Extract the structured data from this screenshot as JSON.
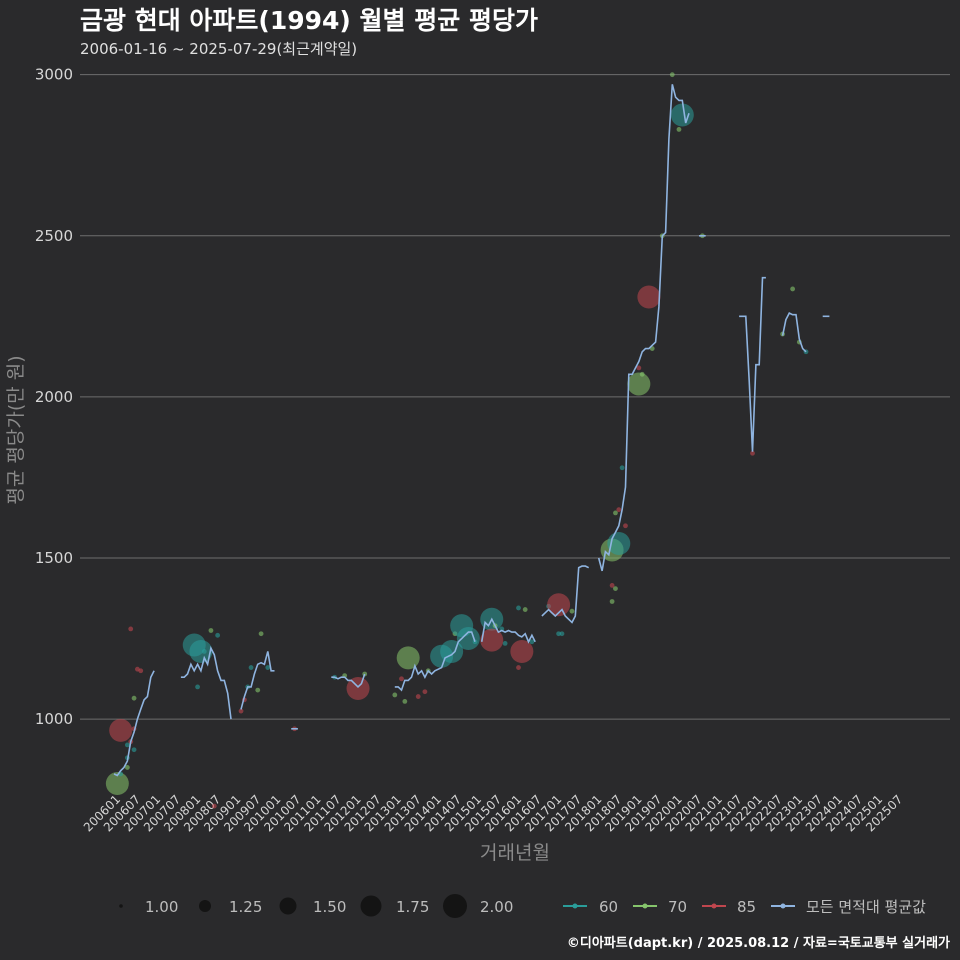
{
  "chart_data": {
    "type": "line",
    "title": "금광 현대 아파트(1994) 월별 평균 평당가",
    "subtitle": "2006-01-16 ~ 2025-07-29(최근계약일)",
    "xlabel": "거래년월",
    "ylabel": "평균 평당가(만 원)",
    "caption": "©디아파트(dapt.kr) / 2025.08.12 / 자료=국토교통부 실거래가",
    "x_range_months": [
      0,
      234
    ],
    "ylim": [
      780,
      3030
    ],
    "y_ticks": [
      1000,
      1500,
      2000,
      2500,
      3000
    ],
    "x_tick_labels": [
      "200601",
      "200607",
      "200701",
      "200707",
      "200801",
      "200807",
      "200901",
      "200907",
      "201001",
      "201007",
      "201101",
      "201107",
      "201201",
      "201207",
      "201301",
      "201307",
      "201401",
      "201407",
      "201501",
      "201507",
      "201601",
      "201607",
      "201701",
      "201707",
      "201801",
      "201807",
      "201901",
      "201907",
      "202001",
      "202007",
      "202101",
      "202107",
      "202201",
      "202207",
      "202301",
      "202307",
      "202401",
      "202407",
      "202501",
      "202507"
    ],
    "colors": {
      "60": "#2a9d9a",
      "70": "#86c56c",
      "85": "#c0464e",
      "avg": "#8fb4e0"
    },
    "size_legend": {
      "values": [
        "1.00",
        "1.25",
        "1.50",
        "1.75",
        "2.00"
      ]
    },
    "color_legend": {
      "items": [
        "60",
        "70",
        "85",
        "모든 면적대 평균값"
      ]
    },
    "avg_series": [
      [
        [
          0,
          830
        ],
        [
          1,
          825
        ],
        [
          2,
          840
        ],
        [
          3,
          850
        ],
        [
          4,
          870
        ],
        [
          5,
          930
        ],
        [
          6,
          960
        ],
        [
          7,
          1000
        ],
        [
          8,
          1030
        ],
        [
          9,
          1060
        ],
        [
          10,
          1070
        ],
        [
          11,
          1130
        ],
        [
          12,
          1150
        ]
      ],
      [
        [
          20,
          1130
        ],
        [
          21,
          1130
        ],
        [
          22,
          1140
        ],
        [
          23,
          1170
        ],
        [
          24,
          1150
        ],
        [
          25,
          1170
        ],
        [
          26,
          1150
        ],
        [
          27,
          1190
        ],
        [
          28,
          1170
        ],
        [
          29,
          1220
        ],
        [
          30,
          1200
        ],
        [
          31,
          1150
        ],
        [
          32,
          1120
        ],
        [
          33,
          1120
        ],
        [
          34,
          1080
        ],
        [
          35,
          1000
        ]
      ],
      [
        [
          38,
          1030
        ],
        [
          39,
          1070
        ],
        [
          40,
          1100
        ],
        [
          41,
          1100
        ],
        [
          42,
          1140
        ],
        [
          43,
          1170
        ],
        [
          44,
          1175
        ],
        [
          45,
          1170
        ],
        [
          46,
          1210
        ],
        [
          47,
          1150
        ],
        [
          48,
          1150
        ]
      ],
      [
        [
          53,
          970
        ],
        [
          54,
          970
        ],
        [
          55,
          970
        ]
      ],
      [
        [
          65,
          1130
        ],
        [
          66,
          1130
        ],
        [
          67,
          1125
        ],
        [
          68,
          1130
        ],
        [
          69,
          1130
        ],
        [
          70,
          1120
        ],
        [
          71,
          1120
        ],
        [
          72,
          1110
        ],
        [
          73,
          1100
        ],
        [
          74,
          1110
        ],
        [
          75,
          1140
        ]
      ],
      [
        [
          84,
          1100
        ],
        [
          85,
          1100
        ],
        [
          86,
          1090
        ],
        [
          87,
          1120
        ],
        [
          88,
          1120
        ],
        [
          89,
          1130
        ],
        [
          90,
          1165
        ],
        [
          91,
          1140
        ],
        [
          92,
          1150
        ],
        [
          93,
          1130
        ],
        [
          94,
          1150
        ],
        [
          95,
          1140
        ],
        [
          96,
          1150
        ],
        [
          97,
          1155
        ],
        [
          98,
          1160
        ],
        [
          99,
          1190
        ],
        [
          100,
          1195
        ],
        [
          101,
          1200
        ],
        [
          102,
          1210
        ],
        [
          103,
          1240
        ],
        [
          104,
          1250
        ],
        [
          105,
          1260
        ],
        [
          106,
          1270
        ],
        [
          107,
          1270
        ],
        [
          108,
          1240
        ]
      ],
      [
        [
          110,
          1240
        ],
        [
          111,
          1300
        ],
        [
          112,
          1290
        ],
        [
          113,
          1310
        ],
        [
          114,
          1290
        ],
        [
          115,
          1270
        ],
        [
          116,
          1275
        ],
        [
          117,
          1270
        ],
        [
          118,
          1275
        ],
        [
          119,
          1270
        ],
        [
          120,
          1270
        ],
        [
          121,
          1260
        ],
        [
          122,
          1255
        ],
        [
          123,
          1265
        ],
        [
          124,
          1240
        ],
        [
          125,
          1260
        ],
        [
          126,
          1240
        ]
      ],
      [
        [
          128,
          1320
        ],
        [
          129,
          1330
        ],
        [
          130,
          1340
        ],
        [
          131,
          1330
        ],
        [
          132,
          1320
        ],
        [
          133,
          1330
        ],
        [
          134,
          1340
        ],
        [
          135,
          1320
        ],
        [
          136,
          1310
        ],
        [
          137,
          1300
        ],
        [
          138,
          1320
        ],
        [
          139,
          1470
        ],
        [
          140,
          1475
        ],
        [
          141,
          1475
        ],
        [
          142,
          1470
        ]
      ],
      [
        [
          145,
          1500
        ],
        [
          146,
          1460
        ],
        [
          147,
          1520
        ],
        [
          148,
          1510
        ],
        [
          149,
          1560
        ],
        [
          150,
          1580
        ],
        [
          151,
          1600
        ],
        [
          152,
          1650
        ],
        [
          153,
          1720
        ],
        [
          154,
          2070
        ],
        [
          155,
          2070
        ],
        [
          156,
          2090
        ],
        [
          157,
          2110
        ],
        [
          158,
          2140
        ],
        [
          159,
          2150
        ],
        [
          160,
          2150
        ],
        [
          161,
          2160
        ],
        [
          162,
          2170
        ],
        [
          163,
          2280
        ],
        [
          164,
          2500
        ],
        [
          165,
          2510
        ],
        [
          166,
          2800
        ],
        [
          167,
          2970
        ],
        [
          168,
          2930
        ],
        [
          169,
          2920
        ],
        [
          170,
          2920
        ],
        [
          171,
          2850
        ],
        [
          172,
          2880
        ]
      ],
      [
        [
          175,
          2500
        ],
        [
          176,
          2500
        ],
        [
          177,
          2500
        ]
      ],
      [
        [
          187,
          2250
        ],
        [
          188,
          2250
        ],
        [
          189,
          2250
        ],
        [
          190,
          2050
        ],
        [
          191,
          1830
        ],
        [
          192,
          2100
        ],
        [
          193,
          2100
        ],
        [
          194,
          2370
        ],
        [
          195,
          2370
        ]
      ],
      [
        [
          200,
          2190
        ],
        [
          201,
          2240
        ],
        [
          202,
          2260
        ],
        [
          203,
          2255
        ],
        [
          204,
          2255
        ],
        [
          205,
          2180
        ],
        [
          206,
          2150
        ],
        [
          207,
          2140
        ]
      ],
      [
        [
          212,
          2250
        ],
        [
          213,
          2250
        ],
        [
          214,
          2250
        ]
      ]
    ],
    "points": [
      [
        1,
        800,
        "70",
        2.0
      ],
      [
        2,
        830,
        "60",
        1.0
      ],
      [
        4,
        850,
        "70",
        1.0
      ],
      [
        2,
        965,
        "85",
        2.0
      ],
      [
        4,
        920,
        "60",
        1.2
      ],
      [
        5,
        1280,
        "85",
        1.0
      ],
      [
        6,
        970,
        "85",
        1.0
      ],
      [
        6,
        1065,
        "70",
        1.2
      ],
      [
        7,
        1155,
        "85",
        1.0
      ],
      [
        8,
        1150,
        "85",
        1.0
      ],
      [
        5,
        930,
        "85",
        1.0
      ],
      [
        6,
        905,
        "60",
        1.0
      ],
      [
        4,
        880,
        "60",
        1.0
      ],
      [
        24,
        1230,
        "60",
        2.0
      ],
      [
        26,
        1210,
        "60",
        2.0
      ],
      [
        27,
        1210,
        "60",
        1.0
      ],
      [
        29,
        1275,
        "70",
        1.0
      ],
      [
        31,
        1260,
        "60",
        1.0
      ],
      [
        25,
        1100,
        "60",
        1.0
      ],
      [
        30,
        730,
        "85",
        1.0
      ],
      [
        38,
        1025,
        "85",
        1.0
      ],
      [
        39,
        1060,
        "85",
        1.0
      ],
      [
        40,
        1100,
        "60",
        1.0
      ],
      [
        43,
        1090,
        "70",
        1.0
      ],
      [
        44,
        1265,
        "70",
        1.0
      ],
      [
        46,
        1160,
        "60",
        1.0
      ],
      [
        41,
        1160,
        "60",
        1.0
      ],
      [
        54,
        970,
        "85",
        1.0
      ],
      [
        66,
        1130,
        "60",
        1.0
      ],
      [
        69,
        1135,
        "70",
        1.0
      ],
      [
        73,
        1095,
        "85",
        2.0
      ],
      [
        75,
        1140,
        "70",
        1.0
      ],
      [
        84,
        1075,
        "70",
        1.0
      ],
      [
        86,
        1125,
        "85",
        1.0
      ],
      [
        87,
        1055,
        "70",
        1.0
      ],
      [
        88,
        1190,
        "70",
        2.0
      ],
      [
        91,
        1070,
        "85",
        1.0
      ],
      [
        93,
        1085,
        "85",
        1.0
      ],
      [
        94,
        1150,
        "70",
        1.0
      ],
      [
        98,
        1195,
        "60",
        2.0
      ],
      [
        101,
        1210,
        "60",
        2.0
      ],
      [
        102,
        1265,
        "70",
        1.0
      ],
      [
        104,
        1290,
        "60",
        2.0
      ],
      [
        106,
        1250,
        "60",
        2.0
      ],
      [
        108,
        1240,
        "60",
        1.0
      ],
      [
        113,
        1310,
        "60",
        2.0
      ],
      [
        113,
        1245,
        "85",
        2.0
      ],
      [
        114,
        1290,
        "70",
        1.0
      ],
      [
        116,
        1280,
        "60",
        1.0
      ],
      [
        117,
        1235,
        "60",
        1.0
      ],
      [
        121,
        1345,
        "60",
        1.0
      ],
      [
        122,
        1210,
        "85",
        2.0
      ],
      [
        121,
        1160,
        "85",
        1.0
      ],
      [
        123,
        1340,
        "70",
        1.0
      ],
      [
        125,
        1240,
        "60",
        1.0
      ],
      [
        130,
        1350,
        "60",
        1.0
      ],
      [
        133,
        1355,
        "85",
        2.0
      ],
      [
        133,
        1265,
        "60",
        1.0
      ],
      [
        134,
        1265,
        "60",
        1.0
      ],
      [
        137,
        1335,
        "70",
        1.0
      ],
      [
        149,
        1525,
        "70",
        2.0
      ],
      [
        151,
        1545,
        "60",
        2.0
      ],
      [
        149,
        1415,
        "85",
        1.0
      ],
      [
        150,
        1405,
        "70",
        1.0
      ],
      [
        149,
        1365,
        "70",
        1.0
      ],
      [
        151,
        1650,
        "85",
        1.0
      ],
      [
        152,
        1780,
        "60",
        1.0
      ],
      [
        150,
        1640,
        "70",
        1.0
      ],
      [
        153,
        1600,
        "85",
        1.0
      ],
      [
        157,
        2040,
        "70",
        2.0
      ],
      [
        158,
        2070,
        "70",
        1.0
      ],
      [
        157,
        2090,
        "85",
        1.0
      ],
      [
        160,
        2310,
        "85",
        2.0
      ],
      [
        161,
        2150,
        "70",
        1.0
      ],
      [
        164,
        2500,
        "70",
        1.0
      ],
      [
        167,
        3000,
        "70",
        1.0
      ],
      [
        170,
        2875,
        "60",
        2.0
      ],
      [
        169,
        2830,
        "70",
        1.0
      ],
      [
        176,
        2500,
        "70",
        1.0
      ],
      [
        191,
        1825,
        "85",
        1.0
      ],
      [
        200,
        2195,
        "70",
        1.0
      ],
      [
        203,
        2335,
        "70",
        1.0
      ],
      [
        205,
        2170,
        "70",
        1.0
      ],
      [
        207,
        2140,
        "60",
        1.0
      ]
    ]
  }
}
